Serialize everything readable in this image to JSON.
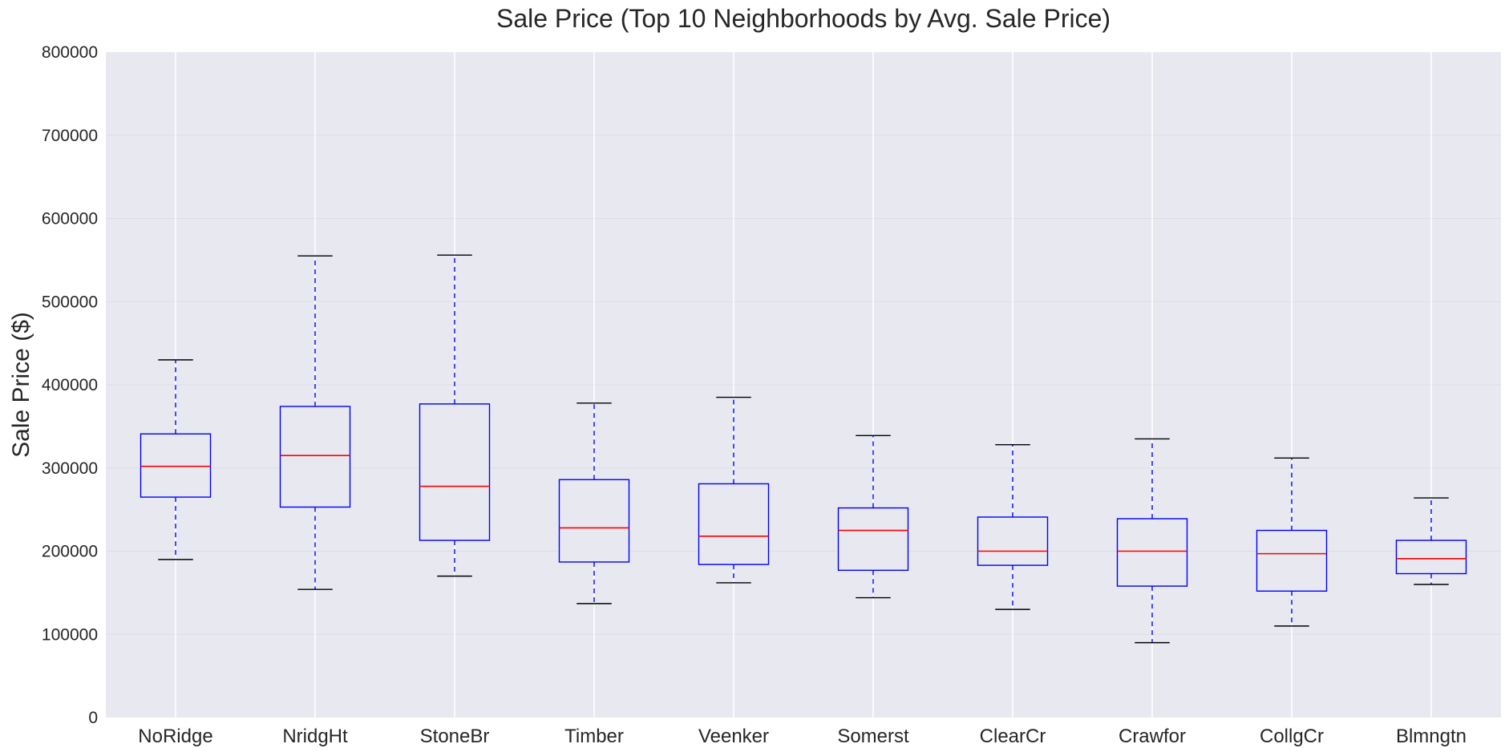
{
  "chart_data": {
    "type": "box",
    "title": "Sale Price (Top 10 Neighborhoods by Avg. Sale Price)",
    "xlabel": "",
    "ylabel": "Sale Price ($)",
    "ylim": [
      0,
      800000
    ],
    "yticks": [
      "0",
      "100000",
      "200000",
      "300000",
      "400000",
      "500000",
      "600000",
      "700000",
      "800000"
    ],
    "grid": true,
    "colors": {
      "background": "#e8e8f1",
      "grid": "#ffffff",
      "box": "#0000ff",
      "median": "#ff0000",
      "whisker": "#0000ff",
      "cap": "#000000"
    },
    "categories": [
      "NoRidge",
      "NridgHt",
      "StoneBr",
      "Timber",
      "Veenker",
      "Somerst",
      "ClearCr",
      "Crawfor",
      "CollgCr",
      "Blmngtn"
    ],
    "boxes": [
      {
        "name": "NoRidge",
        "whisker_low": 190000,
        "q1": 265000,
        "median": 302000,
        "q3": 341000,
        "whisker_high": 430000
      },
      {
        "name": "NridgHt",
        "whisker_low": 154000,
        "q1": 253000,
        "median": 315000,
        "q3": 374000,
        "whisker_high": 555000
      },
      {
        "name": "StoneBr",
        "whisker_low": 170000,
        "q1": 213000,
        "median": 278000,
        "q3": 377000,
        "whisker_high": 556000
      },
      {
        "name": "Timber",
        "whisker_low": 137000,
        "q1": 187000,
        "median": 228000,
        "q3": 286000,
        "whisker_high": 378000
      },
      {
        "name": "Veenker",
        "whisker_low": 162000,
        "q1": 184000,
        "median": 218000,
        "q3": 281000,
        "whisker_high": 385000
      },
      {
        "name": "Somerst",
        "whisker_low": 144000,
        "q1": 177000,
        "median": 225000,
        "q3": 252000,
        "whisker_high": 339000
      },
      {
        "name": "ClearCr",
        "whisker_low": 130000,
        "q1": 183000,
        "median": 200000,
        "q3": 241000,
        "whisker_high": 328000
      },
      {
        "name": "Crawfor",
        "whisker_low": 90000,
        "q1": 158000,
        "median": 200000,
        "q3": 239000,
        "whisker_high": 335000
      },
      {
        "name": "CollgCr",
        "whisker_low": 110000,
        "q1": 152000,
        "median": 197000,
        "q3": 225000,
        "whisker_high": 312000
      },
      {
        "name": "Blmngtn",
        "whisker_low": 160000,
        "q1": 173000,
        "median": 191000,
        "q3": 213000,
        "whisker_high": 264000
      }
    ]
  }
}
